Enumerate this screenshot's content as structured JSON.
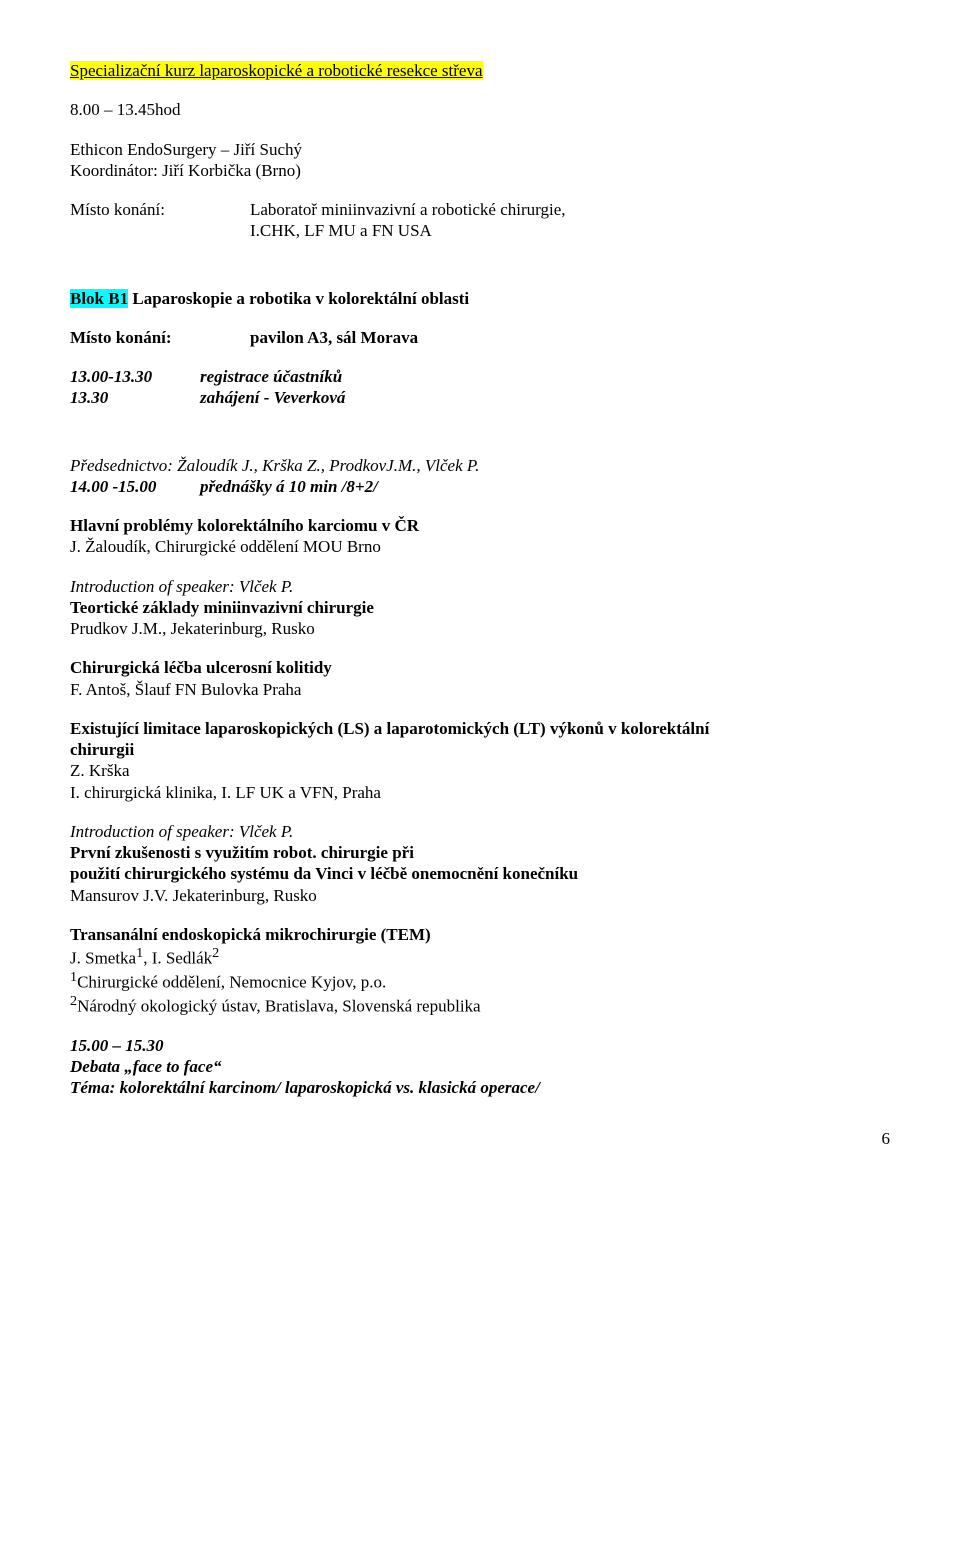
{
  "title": "Specializační kurz laparoskopické a robotické resekce střeva",
  "time1": "8.00 – 13.45hod",
  "org_line1": "Ethicon EndoSurgery – Jiří Suchý",
  "org_line2": "Koordinátor: Jiří Korbička (Brno)",
  "venue_label": "Místo konání:",
  "venue_line1": "Laboratoř miniinvazivní a robotické chirurgie,",
  "venue_line2": "I.CHK, LF MU a FN USA",
  "blok_prefix": "Blok B1",
  "blok_rest": " Laparoskopie a robotika v kolorektální oblasti",
  "venue2_label": "Místo konání:",
  "venue2_value": "pavilon A3, sál Morava",
  "sched1_time": "13.00-13.30",
  "sched1_text": "registrace účastníků",
  "sched2_time": "13.30",
  "sched2_text": "zahájení - Veverková",
  "preds": "Předsednictvo: Žaloudík J., Krška Z., ProdkovJ.M., Vlček P.",
  "sched3_time": "14.00 -15.00",
  "sched3_text": "přednášky á 10 min /8+2/",
  "cr_title": "Hlavní problémy kolorektálního karciomu v ČR",
  "cr_author": "J. Žaloudík, Chirurgické oddělení MOU Brno",
  "intro1": "Introduction of speaker: Vlček P.",
  "teor_title": "Teortické základy miniinvazivní chirurgie",
  "teor_author": "Prudkov  J.M., Jekaterinburg, Rusko",
  "kolitidy_title": "Chirurgická léčba ulcerosní kolitidy",
  "kolitidy_author": "F. Antoš, Šlauf  FN Bulovka Praha",
  "exist_title1": "Existující limitace laparoskopických (LS) a laparotomických (LT) výkonů v kolorektální",
  "exist_title2": "chirurgii",
  "exist_auth1": "Z. Krška",
  "exist_auth2": "I. chirurgická klinika, I. LF UK a VFN, Praha",
  "intro2": "Introduction of speaker: Vlček P.",
  "robot_title1": "První zkušenosti s využitím robot. chirurgie při",
  "robot_title2": "použití chirurgického systému da Vinci v léčbě onemocnění konečníku",
  "robot_auth": "Mansurov J.V. Jekaterinburg, Rusko",
  "tem_title": "Transanální endoskopická mikrochirurgie (TEM)",
  "tem_auth_main": "J. Smetka",
  "tem_auth_sup1": "1",
  "tem_auth_mid": ", I. Sedlák",
  "tem_auth_sup2": "2",
  "tem_aff1_sup": "1",
  "tem_aff1": "Chirurgické oddělení, Nemocnice Kyjov, p.o.",
  "tem_aff2_sup": "2",
  "tem_aff2": "Národný okologický ústav, Bratislava, Slovenská republika",
  "debate_time": "15.00 – 15.30",
  "debate_label": "Debata „face to face“",
  "debate_tema": "Téma: kolorektální karcinom/ laparoskopická vs. klasická operace/",
  "page_number": "6"
}
